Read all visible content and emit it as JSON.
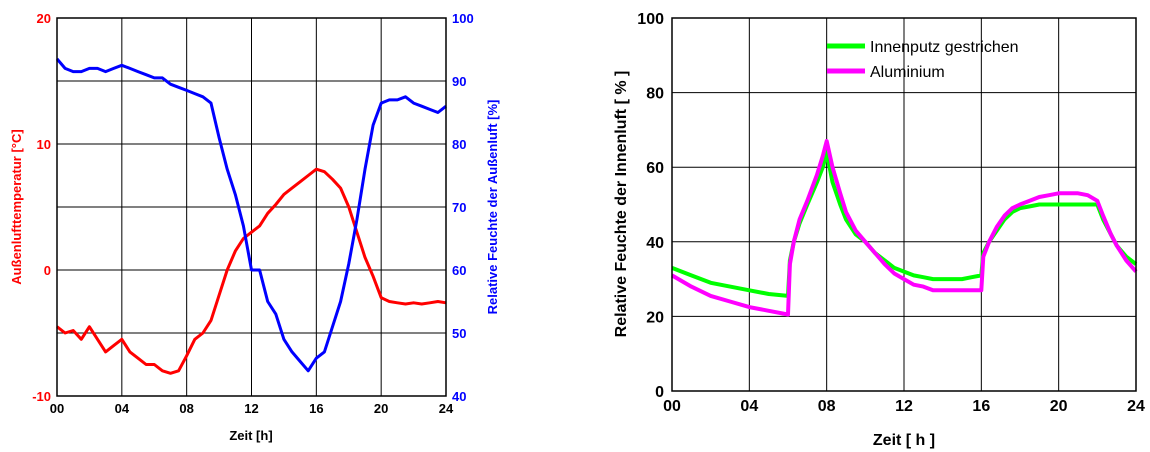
{
  "chart_data": [
    {
      "type": "line",
      "xlabel": "Zeit [h]",
      "ylabel_left": "Außenlufttemperatur [°C]",
      "ylabel_right": "Relative Feuchte der Außenluft [%]",
      "xlim": [
        0,
        24
      ],
      "ylim_left": [
        -10,
        20
      ],
      "ylim_right": [
        40,
        100
      ],
      "x_ticks": [
        "00",
        "04",
        "08",
        "12",
        "16",
        "20",
        "24"
      ],
      "y_ticks_left": [
        "-10",
        "0",
        "10",
        "20"
      ],
      "y_ticks_right": [
        "40",
        "50",
        "60",
        "70",
        "80",
        "90",
        "100"
      ],
      "grid": true,
      "left_axis_color": "#ff0000",
      "right_axis_color": "#0000ff",
      "series": [
        {
          "axis": "left",
          "color": "#ff0000",
          "x": [
            0,
            0.5,
            1,
            1.5,
            2,
            2.5,
            3,
            3.5,
            4,
            4.5,
            5,
            5.5,
            6,
            6.5,
            7,
            7.5,
            8,
            8.5,
            9,
            9.5,
            10,
            10.5,
            11,
            11.5,
            12,
            12.5,
            13,
            13.5,
            14,
            14.5,
            15,
            15.5,
            16,
            16.5,
            17,
            17.5,
            18,
            18.5,
            19,
            19.5,
            20,
            20.5,
            21,
            21.5,
            22,
            22.5,
            23,
            23.5,
            24
          ],
          "values": [
            -4.5,
            -5,
            -4.8,
            -5.5,
            -4.5,
            -5.5,
            -6.5,
            -6,
            -5.5,
            -6.5,
            -7,
            -7.5,
            -7.5,
            -8,
            -8.2,
            -8,
            -6.8,
            -5.5,
            -5,
            -4,
            -2,
            0,
            1.5,
            2.5,
            3,
            3.5,
            4.5,
            5.2,
            6,
            6.5,
            7,
            7.5,
            8,
            7.8,
            7.2,
            6.5,
            5,
            3,
            1,
            -0.5,
            -2.2,
            -2.5,
            -2.6,
            -2.7,
            -2.6,
            -2.7,
            -2.6,
            -2.5,
            -2.6
          ]
        },
        {
          "axis": "right",
          "color": "#0000ff",
          "x": [
            0,
            0.5,
            1,
            1.5,
            2,
            2.5,
            3,
            3.5,
            4,
            4.5,
            5,
            5.5,
            6,
            6.5,
            7,
            7.5,
            8,
            8.5,
            9,
            9.5,
            10,
            10.5,
            11,
            11.5,
            12,
            12.5,
            13,
            13.5,
            14,
            14.5,
            15,
            15.5,
            16,
            16.5,
            17,
            17.5,
            18,
            18.5,
            19,
            19.5,
            20,
            20.5,
            21,
            21.5,
            22,
            22.5,
            23,
            23.5,
            24
          ],
          "values": [
            93.5,
            92,
            91.5,
            91.5,
            92,
            92,
            91.5,
            92,
            92.5,
            92,
            91.5,
            91,
            90.5,
            90.5,
            89.5,
            89,
            88.5,
            88,
            87.5,
            86.5,
            81,
            76,
            72,
            67,
            60,
            60,
            55,
            53,
            49,
            47,
            45.5,
            44,
            46,
            47,
            51,
            55,
            61,
            68,
            76,
            83,
            86.5,
            87,
            87,
            87.5,
            86.5,
            86,
            85.5,
            85,
            86
          ]
        }
      ]
    },
    {
      "type": "line",
      "xlabel": "Zeit [ h ]",
      "ylabel": "Relative Feuchte der Innenluft [ % ]",
      "xlim": [
        0,
        24
      ],
      "ylim": [
        0,
        100
      ],
      "x_ticks": [
        "00",
        "04",
        "08",
        "12",
        "16",
        "20",
        "24"
      ],
      "y_ticks": [
        "0",
        "20",
        "40",
        "60",
        "80",
        "100"
      ],
      "grid": true,
      "legend_position": "top-right",
      "series": [
        {
          "name": "Innenputz gestrichen",
          "color": "#00ff00",
          "x": [
            0,
            1,
            2,
            3,
            4,
            5,
            6,
            6.1,
            6.3,
            6.6,
            7,
            7.5,
            7.8,
            8,
            8.3,
            8.7,
            9,
            9.5,
            10,
            10.5,
            11,
            11.5,
            12,
            12.5,
            13,
            13.5,
            14,
            14.5,
            15,
            15.5,
            16,
            16.1,
            16.4,
            16.8,
            17.2,
            17.6,
            18,
            18.5,
            19,
            19.5,
            20,
            20.5,
            21,
            21.5,
            22,
            22.3,
            22.7,
            23,
            23.5,
            24
          ],
          "values": [
            33,
            31,
            29,
            28,
            27,
            26,
            25.5,
            35,
            40,
            45,
            50,
            56,
            60,
            64,
            56,
            50,
            46,
            42,
            40,
            37,
            35,
            33,
            32,
            31,
            30.5,
            30,
            30,
            30,
            30,
            30.5,
            31,
            37,
            40,
            43,
            46,
            48,
            49,
            49.5,
            50,
            50,
            50,
            50,
            50,
            50,
            50,
            46,
            42,
            39,
            36,
            34
          ]
        },
        {
          "name": "Aluminium",
          "color": "#ff00ff",
          "x": [
            0,
            1,
            2,
            3,
            4,
            5,
            6,
            6.1,
            6.3,
            6.6,
            7,
            7.5,
            7.8,
            8,
            8.3,
            8.7,
            9,
            9.5,
            10,
            10.5,
            11,
            11.5,
            12,
            12.5,
            13,
            13.5,
            14,
            14.5,
            15,
            15.5,
            16,
            16.1,
            16.4,
            16.8,
            17.2,
            17.6,
            18,
            18.5,
            19,
            19.5,
            20,
            20.5,
            21,
            21.5,
            22,
            22.3,
            22.7,
            23,
            23.5,
            24
          ],
          "values": [
            31,
            28,
            25.5,
            24,
            22.5,
            21.5,
            20.5,
            34,
            40,
            46,
            51,
            58,
            63,
            67,
            60,
            53,
            48,
            43,
            40,
            37,
            34,
            31.5,
            30,
            28.5,
            28,
            27,
            27,
            27,
            27,
            27,
            27,
            36,
            40,
            44,
            47,
            49,
            50,
            51,
            52,
            52.5,
            53,
            53,
            53,
            52.5,
            51,
            47,
            42,
            39,
            35,
            32
          ]
        }
      ]
    }
  ]
}
